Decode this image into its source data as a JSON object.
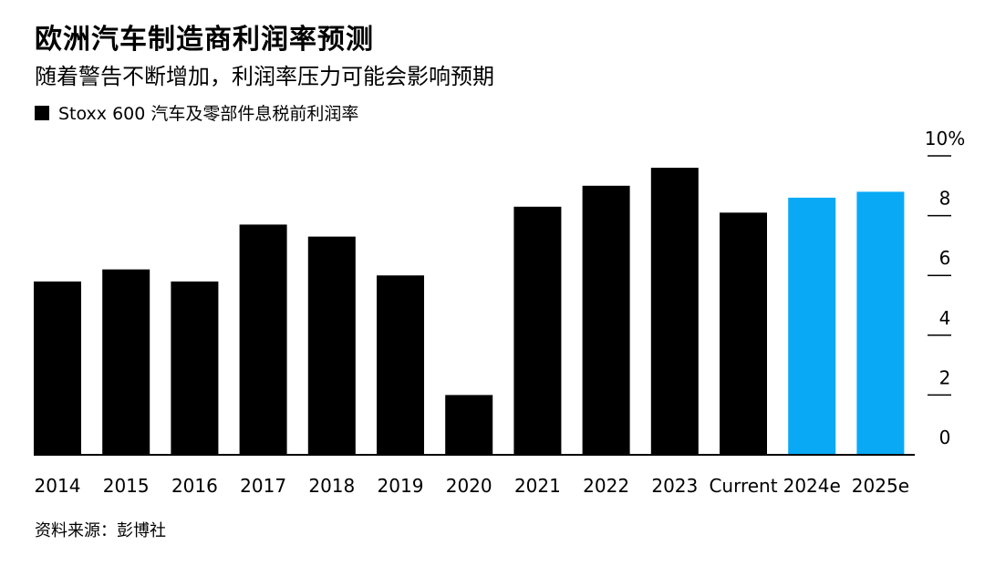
{
  "header": {
    "title": "欧洲汽车制造商利润率预测",
    "subtitle": "随着警告不断增加，利润率压力可能会影响预期"
  },
  "legend": {
    "label": "Stoxx 600 汽车及零部件息税前利润率",
    "color": "#000000"
  },
  "footer": {
    "source": "资料来源：彭博社"
  },
  "chart_data": {
    "type": "bar",
    "categories": [
      "2014",
      "2015",
      "2016",
      "2017",
      "2018",
      "2019",
      "2020",
      "2021",
      "2022",
      "2023",
      "Current",
      "2024e",
      "2025e"
    ],
    "values": [
      5.8,
      6.2,
      5.8,
      7.7,
      7.3,
      6.0,
      2.0,
      8.3,
      9.0,
      9.6,
      8.1,
      8.6,
      8.8
    ],
    "colors": [
      "#000000",
      "#000000",
      "#000000",
      "#000000",
      "#000000",
      "#000000",
      "#000000",
      "#000000",
      "#000000",
      "#000000",
      "#000000",
      "#09a9f5",
      "#09a9f5"
    ],
    "series": [
      {
        "name": "Stoxx 600 汽车及零部件息税前利润率",
        "values": [
          5.8,
          6.2,
          5.8,
          7.7,
          7.3,
          6.0,
          2.0,
          8.3,
          9.0,
          9.6,
          8.1,
          8.6,
          8.8
        ]
      }
    ],
    "ylim": [
      0,
      10
    ],
    "yticks": [
      "0",
      "2",
      "4",
      "6",
      "8",
      "10%"
    ],
    "ytick_values": [
      0,
      2,
      4,
      6,
      8,
      10
    ],
    "y_axis_position": "right",
    "grid": false,
    "legend_position": "top-left"
  }
}
